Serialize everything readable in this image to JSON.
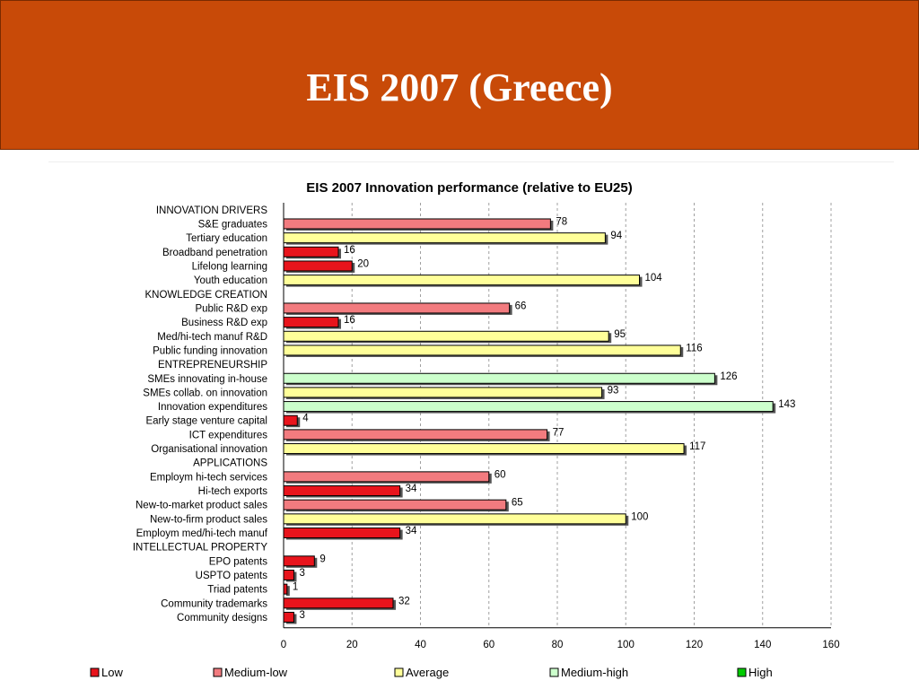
{
  "slide": {
    "title": "EIS 2007 (Greece)"
  },
  "chart_data": {
    "type": "bar",
    "orientation": "horizontal",
    "title": "EIS 2007 Innovation performance (relative to EU25)",
    "xlim": [
      0,
      160
    ],
    "xticks": [
      0,
      20,
      40,
      60,
      80,
      100,
      120,
      140,
      160
    ],
    "grid": true,
    "legend_position": "bottom",
    "colors": {
      "Low": "#e8141c",
      "Medium-low": "#f27b7f",
      "Average": "#ffff99",
      "Medium-high": "#ccffcc",
      "High": "#00cc00"
    },
    "legend": [
      "Low",
      "Medium-low",
      "Average",
      "Medium-high",
      "High"
    ],
    "categories": [
      {
        "label": "INNOVATION DRIVERS",
        "value": null,
        "level": null
      },
      {
        "label": "S&E graduates",
        "value": 78,
        "level": "Medium-low"
      },
      {
        "label": "Tertiary education",
        "value": 94,
        "level": "Average"
      },
      {
        "label": "Broadband penetration",
        "value": 16,
        "level": "Low"
      },
      {
        "label": "Lifelong learning",
        "value": 20,
        "level": "Low"
      },
      {
        "label": "Youth education",
        "value": 104,
        "level": "Average"
      },
      {
        "label": "KNOWLEDGE CREATION",
        "value": null,
        "level": null
      },
      {
        "label": "Public R&D exp",
        "value": 66,
        "level": "Medium-low"
      },
      {
        "label": "Business R&D exp",
        "value": 16,
        "level": "Low"
      },
      {
        "label": "Med/hi-tech manuf R&D",
        "value": 95,
        "level": "Average"
      },
      {
        "label": "Public funding innovation",
        "value": 116,
        "level": "Average"
      },
      {
        "label": "ENTREPRENEURSHIP",
        "value": null,
        "level": null
      },
      {
        "label": "SMEs innovating in-house",
        "value": 126,
        "level": "Medium-high"
      },
      {
        "label": "SMEs collab. on innovation",
        "value": 93,
        "level": "Average"
      },
      {
        "label": "Innovation expenditures",
        "value": 143,
        "level": "Medium-high"
      },
      {
        "label": "Early stage venture capital",
        "value": 4,
        "level": "Low"
      },
      {
        "label": "ICT expenditures",
        "value": 77,
        "level": "Medium-low"
      },
      {
        "label": "Organisational innovation",
        "value": 117,
        "level": "Average"
      },
      {
        "label": "APPLICATIONS",
        "value": null,
        "level": null
      },
      {
        "label": "Employm hi-tech services",
        "value": 60,
        "level": "Medium-low"
      },
      {
        "label": "Hi-tech exports",
        "value": 34,
        "level": "Low"
      },
      {
        "label": "New-to-market product sales",
        "value": 65,
        "level": "Medium-low"
      },
      {
        "label": "New-to-firm product sales",
        "value": 100,
        "level": "Average"
      },
      {
        "label": "Employm med/hi-tech manuf",
        "value": 34,
        "level": "Low"
      },
      {
        "label": "INTELLECTUAL PROPERTY",
        "value": null,
        "level": null
      },
      {
        "label": "EPO patents",
        "value": 9,
        "level": "Low"
      },
      {
        "label": "USPTO patents",
        "value": 3,
        "level": "Low"
      },
      {
        "label": "Triad patents",
        "value": 1,
        "level": "Low"
      },
      {
        "label": "Community trademarks",
        "value": 32,
        "level": "Low"
      },
      {
        "label": "Community designs",
        "value": 3,
        "level": "Low"
      }
    ]
  }
}
